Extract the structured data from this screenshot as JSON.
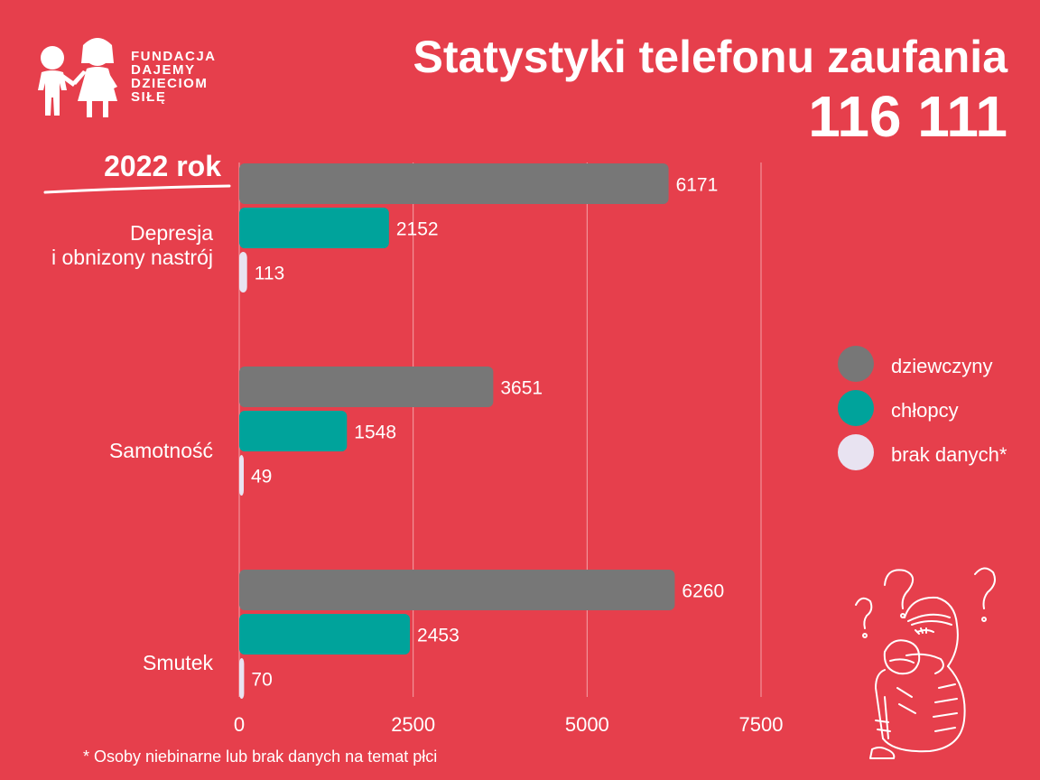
{
  "logo": {
    "lines": [
      "FUNDACJA",
      "DAJEMY",
      "DZIECIOM",
      "SIŁĘ"
    ]
  },
  "colors": {
    "background": "#e63f4c",
    "dziewczyny": "#777777",
    "chlopcy": "#00a39b",
    "brak_danych": "#e8e3f1",
    "grid": "#f4a2a8"
  },
  "chart_data": {
    "type": "bar",
    "orientation": "horizontal",
    "title": "Statystyki telefonu zaufania",
    "subtitle": "116 111",
    "period_label": "2022 rok",
    "categories": [
      "Depresja\ni obnizony nastrój",
      "Samotność",
      "Smutek"
    ],
    "series": [
      {
        "name": "dziewczyny",
        "values": [
          6171,
          3651,
          6260
        ]
      },
      {
        "name": "chłopcy",
        "values": [
          2152,
          1548,
          2453
        ]
      },
      {
        "name": "brak danych*",
        "values": [
          113,
          49,
          70
        ]
      }
    ],
    "x_ticks": [
      0,
      2500,
      5000,
      7500
    ],
    "xlim": [
      0,
      7500
    ],
    "grid": true,
    "legend_position": "right",
    "footnote": "* Osoby niebinarne lub brak danych na temat płci"
  }
}
